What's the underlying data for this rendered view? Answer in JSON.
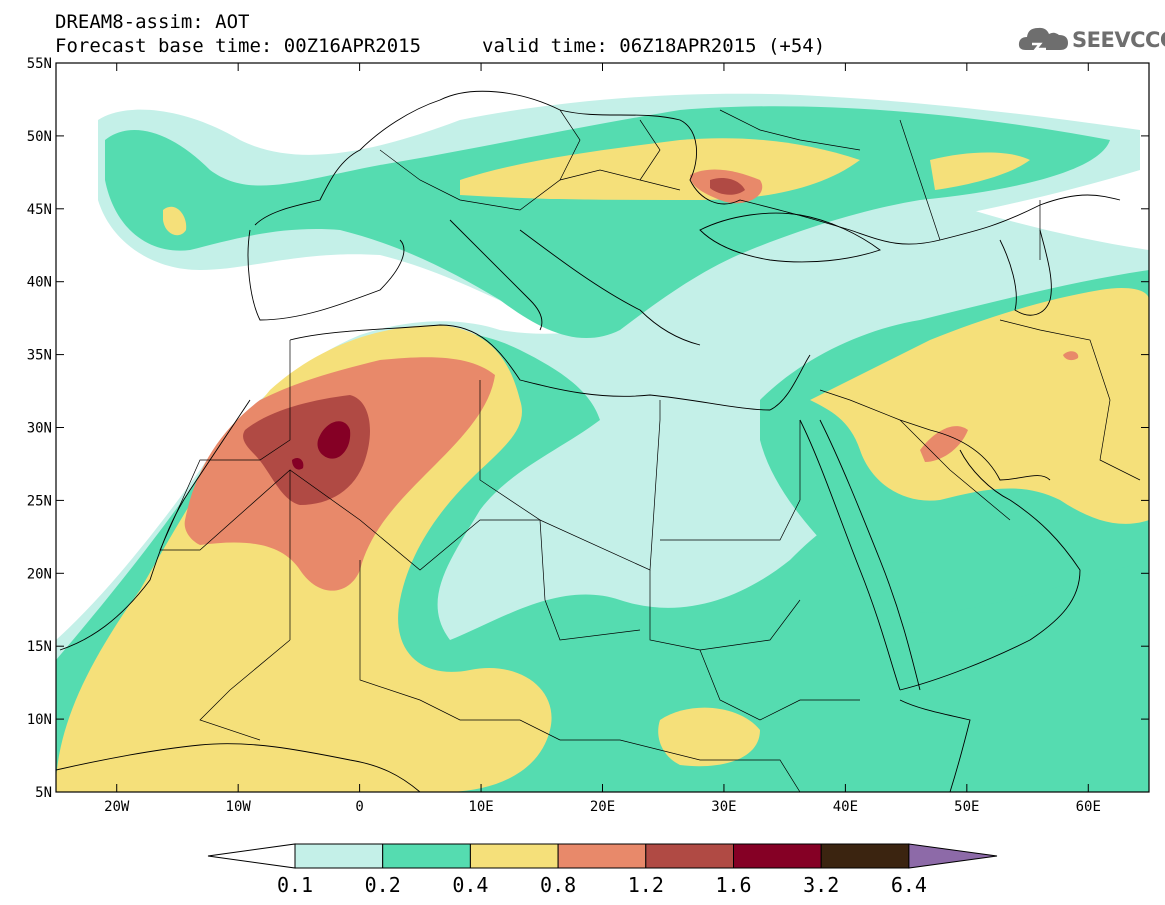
{
  "header": {
    "title": "DREAM8-assim: AOT",
    "base_time": "Forecast base time: 00Z16APR2015",
    "valid_time": "valid time: 06Z18APR2015 (+54)",
    "logo_text": "SEEVCCC"
  },
  "map": {
    "lon_range": [
      -25,
      65
    ],
    "lat_range": [
      5,
      55
    ],
    "x_ticks": [
      {
        "lon": -20,
        "label": "20W"
      },
      {
        "lon": -10,
        "label": "10W"
      },
      {
        "lon": 0,
        "label": "0"
      },
      {
        "lon": 10,
        "label": "10E"
      },
      {
        "lon": 20,
        "label": "20E"
      },
      {
        "lon": 30,
        "label": "30E"
      },
      {
        "lon": 40,
        "label": "40E"
      },
      {
        "lon": 50,
        "label": "50E"
      },
      {
        "lon": 60,
        "label": "60E"
      }
    ],
    "y_ticks": [
      {
        "lat": 55,
        "label": "55N"
      },
      {
        "lat": 50,
        "label": "50N"
      },
      {
        "lat": 45,
        "label": "45N"
      },
      {
        "lat": 40,
        "label": "40N"
      },
      {
        "lat": 35,
        "label": "35N"
      },
      {
        "lat": 30,
        "label": "30N"
      },
      {
        "lat": 25,
        "label": "25N"
      },
      {
        "lat": 20,
        "label": "20N"
      },
      {
        "lat": 15,
        "label": "15N"
      },
      {
        "lat": 10,
        "label": "10N"
      },
      {
        "lat": 5,
        "label": "5N"
      }
    ]
  },
  "colorbar": {
    "levels": [
      "0.1",
      "0.2",
      "0.4",
      "0.8",
      "1.2",
      "1.6",
      "3.2",
      "6.4"
    ],
    "colors": [
      "#ffffff",
      "#c4f0e8",
      "#55dcb0",
      "#f5e07a",
      "#e8896a",
      "#b04a44",
      "#850025",
      "#3b2410",
      "#8d6aa8"
    ]
  }
}
